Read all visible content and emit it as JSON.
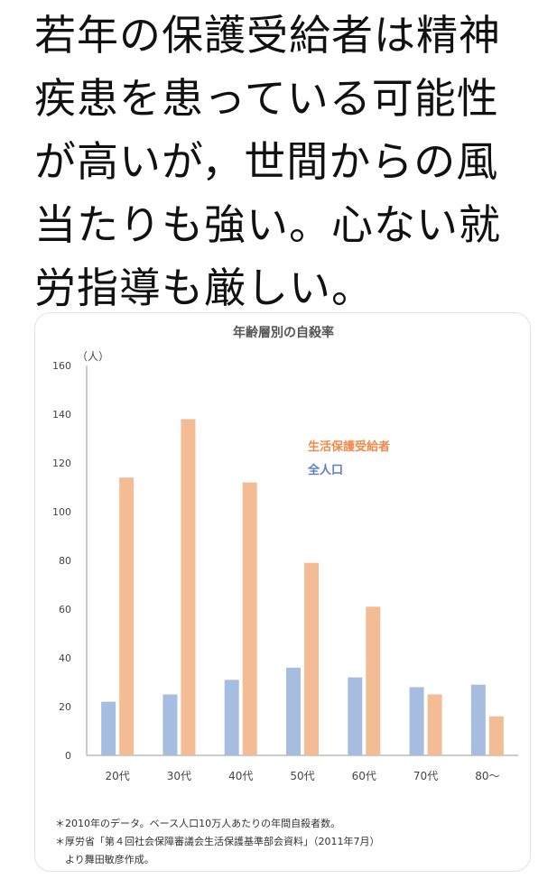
{
  "headline": {
    "lines": [
      "若年の保護受給者は精神",
      "疾患を患っている可能性",
      "が高いが，世間からの風",
      "当たりも強い。心ない就",
      "労指導も厳しい。"
    ]
  },
  "chart_data": {
    "type": "bar",
    "title": "年齢層別の自殺率",
    "ylabel": "（人）",
    "xlabel": "",
    "ylim": [
      0,
      160
    ],
    "yticks": [
      0,
      20,
      40,
      60,
      80,
      100,
      120,
      140,
      160
    ],
    "grid": false,
    "legend_position": "right",
    "categories": [
      "20代",
      "30代",
      "40代",
      "50代",
      "60代",
      "70代",
      "80～"
    ],
    "series": [
      {
        "name": "全人口",
        "color": "#a7bde0",
        "values": [
          22,
          25,
          31,
          36,
          32,
          28,
          29
        ]
      },
      {
        "name": "生活保護受給者",
        "color": "#f4bc94",
        "values": [
          114,
          138,
          112,
          79,
          61,
          25,
          16
        ]
      }
    ],
    "legend_colors": {
      "生活保護受給者": "#f08a4b",
      "全人口": "#5b7fc7"
    }
  },
  "footnotes": [
    "＊2010年のデータ。ベース人口10万人あたりの年間自殺者数。",
    "＊厚労省「第４回社会保障審議会生活保護基準部会資料」（2011年7月）",
    "　より舞田敏彦作成。"
  ]
}
